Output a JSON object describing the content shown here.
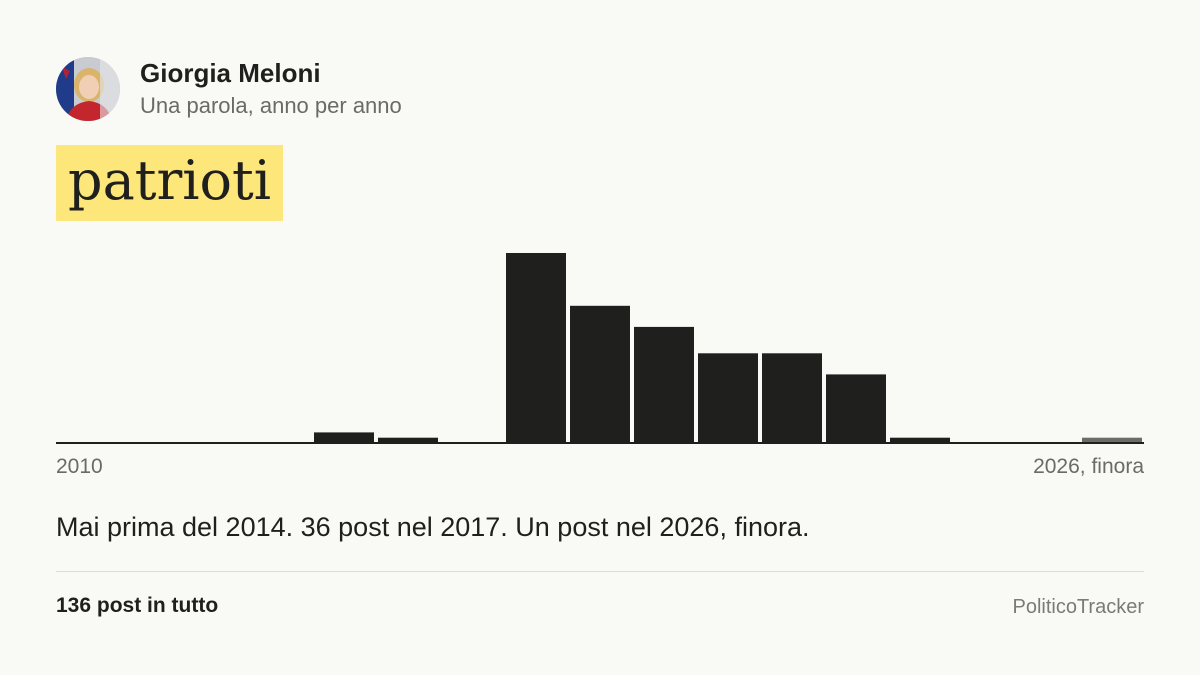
{
  "header": {
    "name": "Giorgia Meloni",
    "subtitle": "Una parola, anno per anno"
  },
  "keyword": "patrioti",
  "axis": {
    "start_label": "2010",
    "end_label": "2026, finora"
  },
  "summary": "Mai prima del 2014. 36 post nel 2017. Un post nel 2026, finora.",
  "footer": {
    "total": "136 post in tutto",
    "brand": "PoliticoTracker"
  },
  "colors": {
    "bar": "#1f1f1d",
    "bar_partial_year": "#6b6b67",
    "highlight": "#fde67a",
    "background": "#f9f9f5"
  },
  "chart_data": {
    "type": "bar",
    "categories": [
      "2010",
      "2011",
      "2012",
      "2013",
      "2014",
      "2015",
      "2016",
      "2017",
      "2018",
      "2019",
      "2020",
      "2021",
      "2022",
      "2023",
      "2024",
      "2025",
      "2026"
    ],
    "values": [
      0,
      0,
      0,
      0,
      2,
      1,
      0,
      36,
      26,
      22,
      17,
      17,
      13,
      1,
      0,
      0,
      1
    ],
    "partial_year": "2026",
    "xlabel": "",
    "ylabel": "",
    "grid": false
  }
}
